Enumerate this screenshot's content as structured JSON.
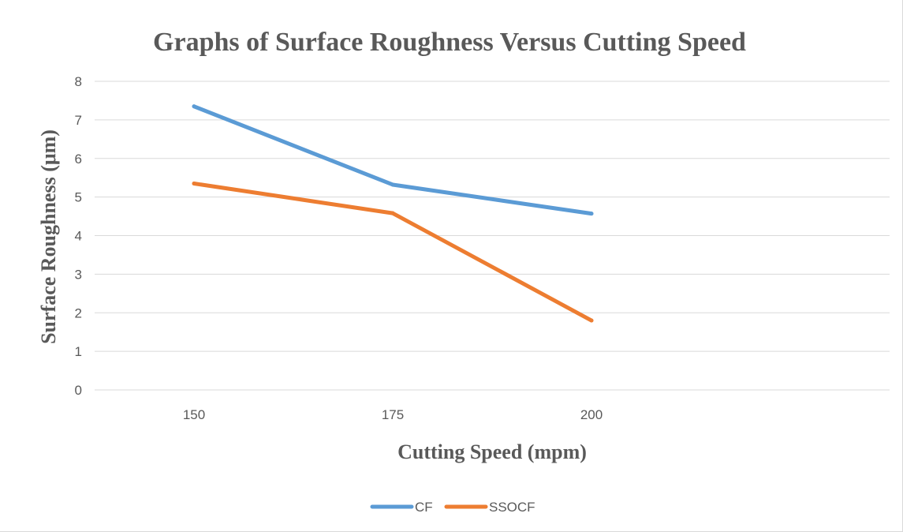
{
  "chart_data": {
    "type": "line",
    "title": "Graphs of Surface Roughness Versus Cutting Speed",
    "xlabel": "Cutting Speed (mpm)",
    "ylabel": "Surface Roughness (μm)",
    "categories": [
      "150",
      "175",
      "200"
    ],
    "ylim": [
      0,
      8
    ],
    "yticks": [
      "0",
      "1",
      "2",
      "3",
      "4",
      "5",
      "6",
      "7",
      "8"
    ],
    "grid": true,
    "legend_position": "bottom",
    "series": [
      {
        "name": "CF",
        "color": "#5b9bd5",
        "values": [
          7.35,
          5.32,
          4.57
        ]
      },
      {
        "name": "SSOCF",
        "color": "#ed7d31",
        "values": [
          5.35,
          4.58,
          1.8
        ]
      }
    ]
  }
}
